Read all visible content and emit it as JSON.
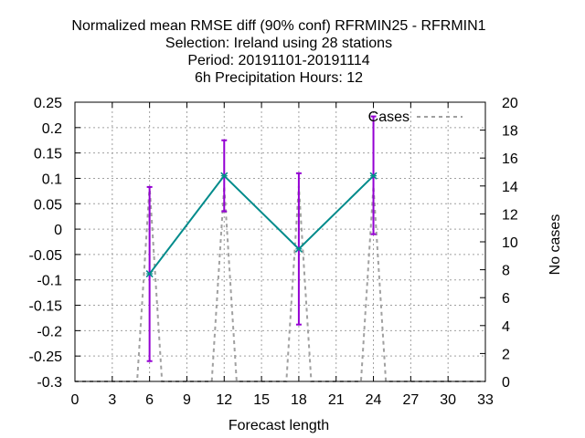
{
  "chart_data": {
    "type": "line",
    "title_lines": [
      "Normalized mean RMSE diff (90% conf) RFRMIN25 - RFRMIN1",
      "Selection: Ireland using    28 stations",
      "Period: 20191101-20191114",
      "6h Precipitation   Hours:  12"
    ],
    "xlabel": "Forecast length",
    "ylabel": "",
    "y2label": "No cases",
    "xlim": [
      0,
      33
    ],
    "ylim": [
      -0.3,
      0.25
    ],
    "y2lim": [
      0,
      20
    ],
    "xticks": [
      0,
      3,
      6,
      9,
      12,
      15,
      18,
      21,
      24,
      27,
      30,
      33
    ],
    "yticks": [
      -0.3,
      -0.25,
      -0.2,
      -0.15,
      -0.1,
      -0.05,
      0,
      0.05,
      0.1,
      0.15,
      0.2,
      0.25
    ],
    "ytick_labels": [
      "-0.3",
      "-0.25",
      "-0.2",
      "-0.15",
      "-0.1",
      "-0.05",
      "0",
      "0.05",
      "0.1",
      "0.15",
      "0.2",
      "0.25"
    ],
    "y2ticks": [
      0,
      2,
      4,
      6,
      8,
      10,
      12,
      14,
      16,
      18,
      20
    ],
    "grid": true,
    "legend": {
      "position": "top-right",
      "entries": [
        "Cases"
      ]
    },
    "series": [
      {
        "name": "",
        "color": "#008b8b",
        "axis": "y",
        "x": [
          6,
          12,
          18,
          24
        ],
        "y": [
          -0.088,
          0.105,
          -0.039,
          0.105
        ],
        "error_low": [
          -0.26,
          0.035,
          -0.188,
          -0.01
        ],
        "error_high": [
          0.083,
          0.175,
          0.11,
          0.222
        ],
        "error_color": "#9400d3"
      },
      {
        "name": "Cases",
        "color": "#a0a0a0",
        "dashed": true,
        "axis": "y2",
        "x": [
          0,
          1,
          2,
          3,
          4,
          5,
          6,
          7,
          8,
          9,
          10,
          11,
          12,
          13,
          14,
          15,
          16,
          17,
          18,
          19,
          20,
          21,
          22,
          23,
          24,
          25,
          26,
          27,
          28,
          29,
          30,
          31,
          32,
          33
        ],
        "y": [
          0,
          0,
          0,
          0,
          0,
          0,
          14,
          0,
          0,
          0,
          0,
          0,
          14,
          0,
          0,
          0,
          0,
          0,
          14,
          0,
          0,
          0,
          0,
          0,
          14,
          0,
          0,
          0,
          0,
          0,
          0,
          0,
          0,
          0
        ]
      }
    ]
  }
}
